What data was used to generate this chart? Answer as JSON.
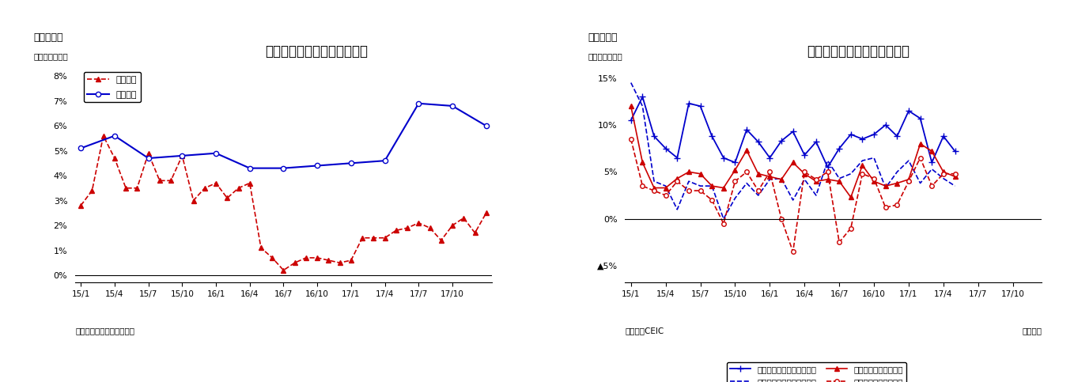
{
  "chart1": {
    "title": "雇用者数と民間給与の伸び率",
    "subtitle_left": "（図表３）",
    "ylabel": "（前年同期比）",
    "source": "（資料）マレーシア統計庁",
    "ylim_min": -0.003,
    "ylim_max": 0.086,
    "yticks": [
      0.0,
      0.01,
      0.02,
      0.03,
      0.04,
      0.05,
      0.06,
      0.07,
      0.08
    ],
    "ytick_labels": [
      "0%",
      "1%",
      "2%",
      "3%",
      "4%",
      "5%",
      "6%",
      "7%",
      "8%"
    ],
    "xtick_labels": [
      "15/1",
      "15/4",
      "15/7",
      "15/10",
      "16/1",
      "16/4",
      "16/7",
      "16/10",
      "17/1",
      "17/4",
      "17/7",
      "17/10"
    ],
    "xtick_positions": [
      0,
      3,
      6,
      9,
      12,
      15,
      18,
      21,
      24,
      27,
      30,
      33
    ],
    "xlim_min": -0.5,
    "xlim_max": 36.5,
    "series1_label": "雇用者数",
    "series1_color": "#cc0000",
    "series1_x": [
      0,
      1,
      2,
      3,
      4,
      5,
      6,
      7,
      8,
      9,
      10,
      11,
      12,
      13,
      14,
      15,
      16,
      17,
      18,
      19,
      20,
      21,
      22,
      23,
      24,
      25,
      26,
      27,
      28,
      29,
      30,
      31,
      32,
      33,
      34,
      35,
      36
    ],
    "series1_values": [
      0.028,
      0.034,
      0.056,
      0.047,
      0.035,
      0.035,
      0.049,
      0.038,
      0.038,
      0.048,
      0.03,
      0.035,
      0.037,
      0.031,
      0.035,
      0.037,
      0.011,
      0.007,
      0.002,
      0.005,
      0.007,
      0.007,
      0.006,
      0.005,
      0.006,
      0.015,
      0.015,
      0.015,
      0.018,
      0.019,
      0.021,
      0.019,
      0.014,
      0.02,
      0.023,
      0.017,
      0.025
    ],
    "series2_label": "民間給与",
    "series2_color": "#0000cc",
    "series2_x": [
      0,
      3,
      6,
      9,
      12,
      15,
      18,
      21,
      24,
      27,
      30,
      33,
      36
    ],
    "series2_values": [
      0.051,
      0.056,
      0.047,
      0.048,
      0.049,
      0.043,
      0.043,
      0.044,
      0.045,
      0.046,
      0.069,
      0.068,
      0.06
    ]
  },
  "chart2": {
    "title": "マレーシアの鉱工業生産指数",
    "subtitle_left": "（図表４）",
    "ylabel": "（前年同月比）",
    "source_left": "（資料）CEIC",
    "source_right": "（月次）",
    "ylim_min": -0.068,
    "ylim_max": 0.168,
    "yticks": [
      -0.05,
      0.0,
      0.05,
      0.1,
      0.15
    ],
    "ytick_labels": [
      "▲5%",
      "0%",
      "5%",
      "10%",
      "15%"
    ],
    "xtick_labels": [
      "15/1",
      "15/4",
      "15/7",
      "15/10",
      "16/1",
      "16/4",
      "16/7",
      "16/10",
      "17/1",
      "17/4",
      "17/7",
      "17/10"
    ],
    "xtick_positions": [
      0,
      3,
      6,
      9,
      12,
      15,
      18,
      21,
      24,
      27,
      30,
      33
    ],
    "xlim_min": -0.5,
    "xlim_max": 35.5,
    "export_elec_label": "輸出関連（うち電気電子）",
    "export_elec_color": "#0000cc",
    "export_elec_x": [
      0,
      1,
      2,
      3,
      4,
      5,
      6,
      7,
      8,
      9,
      10,
      11,
      12,
      13,
      14,
      15,
      16,
      17,
      18,
      19,
      20,
      21,
      22,
      23,
      24,
      25,
      26,
      27,
      28
    ],
    "export_elec_values": [
      0.105,
      0.13,
      0.088,
      0.075,
      0.065,
      0.123,
      0.12,
      0.088,
      0.065,
      0.06,
      0.095,
      0.082,
      0.065,
      0.083,
      0.093,
      0.068,
      0.082,
      0.055,
      0.075,
      0.09,
      0.085,
      0.09,
      0.1,
      0.088,
      0.115,
      0.107,
      0.06,
      0.088,
      0.072
    ],
    "export_primary_label": "輸出関連（うち一次産品）",
    "export_primary_color": "#0000cc",
    "export_primary_x": [
      0,
      1,
      2,
      3,
      4,
      5,
      6,
      7,
      8,
      9,
      10,
      11,
      12,
      13,
      14,
      15,
      16,
      17,
      18,
      19,
      20,
      21,
      22,
      23,
      24,
      25,
      26,
      27,
      28
    ],
    "export_primary_values": [
      0.145,
      0.12,
      0.04,
      0.035,
      0.01,
      0.04,
      0.035,
      0.035,
      0.0,
      0.022,
      0.038,
      0.025,
      0.042,
      0.043,
      0.02,
      0.042,
      0.025,
      0.062,
      0.043,
      0.048,
      0.062,
      0.065,
      0.033,
      0.05,
      0.062,
      0.038,
      0.053,
      0.043,
      0.035
    ],
    "domestic_construction_label": "内需関連（うち建設）",
    "domestic_construction_color": "#cc0000",
    "domestic_construction_x": [
      0,
      1,
      2,
      3,
      4,
      5,
      6,
      7,
      8,
      9,
      10,
      11,
      12,
      13,
      14,
      15,
      16,
      17,
      18,
      19,
      20,
      21,
      22,
      23,
      24,
      25,
      26,
      27,
      28
    ],
    "domestic_construction_values": [
      0.12,
      0.06,
      0.033,
      0.033,
      0.043,
      0.05,
      0.048,
      0.035,
      0.033,
      0.052,
      0.073,
      0.048,
      0.045,
      0.042,
      0.06,
      0.048,
      0.04,
      0.042,
      0.04,
      0.023,
      0.057,
      0.04,
      0.035,
      0.038,
      0.042,
      0.08,
      0.072,
      0.05,
      0.045
    ],
    "domestic_consumption_label": "内需関連（うち消費）",
    "domestic_consumption_color": "#cc0000",
    "domestic_consumption_x": [
      0,
      1,
      2,
      3,
      4,
      5,
      6,
      7,
      8,
      9,
      10,
      11,
      12,
      13,
      14,
      15,
      16,
      17,
      18,
      19,
      20,
      21,
      22,
      23,
      24,
      25,
      26,
      27,
      28
    ],
    "domestic_consumption_values": [
      0.085,
      0.035,
      0.03,
      0.025,
      0.04,
      0.03,
      0.03,
      0.02,
      -0.005,
      0.04,
      0.05,
      0.03,
      0.05,
      0.0,
      -0.035,
      0.05,
      0.042,
      0.05,
      -0.025,
      -0.01,
      0.048,
      0.043,
      0.012,
      0.015,
      0.04,
      0.065,
      0.035,
      0.048,
      0.048
    ]
  }
}
